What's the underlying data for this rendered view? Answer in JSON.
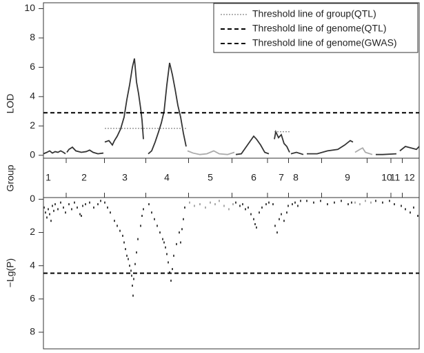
{
  "chart_data": [
    {
      "type": "line",
      "y_label": "LOD",
      "xlim": [
        63,
        608
      ],
      "ylim": [
        -0.2,
        10.4
      ],
      "yticks": [
        0,
        2,
        4,
        6,
        8,
        10
      ],
      "series": [
        {
          "color": "#333333",
          "x": [
            63,
            68,
            72,
            76,
            80,
            84,
            88,
            92,
            95
          ],
          "values": [
            0.1,
            0.2,
            0.3,
            0.15,
            0.25,
            0.2,
            0.3,
            0.2,
            0.1
          ]
        },
        {
          "color": "#333333",
          "x": [
            97,
            100,
            105,
            110,
            118,
            125,
            130,
            135,
            142,
            150
          ],
          "values": [
            0.2,
            0.4,
            0.55,
            0.3,
            0.2,
            0.25,
            0.35,
            0.2,
            0.1,
            0.15
          ]
        },
        {
          "color": "#333333",
          "x": [
            152,
            158,
            163,
            166,
            170,
            175,
            180,
            184,
            188,
            192,
            195,
            198,
            201,
            204,
            206,
            208
          ],
          "values": [
            0.9,
            1.0,
            0.7,
            1.0,
            1.3,
            1.8,
            2.6,
            3.8,
            4.8,
            6.0,
            6.6,
            5.0,
            4.2,
            3.2,
            2.4,
            1.1
          ]
        },
        {
          "color": "#333333",
          "x": [
            215,
            220,
            225,
            230,
            234,
            238,
            242,
            246,
            250,
            254,
            258,
            262,
            266,
            270
          ],
          "values": [
            0.1,
            0.3,
            0.9,
            1.6,
            2.2,
            3.0,
            4.8,
            6.3,
            5.5,
            4.5,
            3.4,
            2.6,
            1.5,
            0.6
          ]
        },
        {
          "color": "#aaaaaa",
          "x": [
            272,
            280,
            290,
            300,
            310,
            318,
            330,
            340
          ],
          "values": [
            0.3,
            0.15,
            0.05,
            0.1,
            0.3,
            0.1,
            0.05,
            0.2
          ]
        },
        {
          "color": "#333333",
          "x": [
            342,
            350,
            356,
            362,
            368,
            372,
            378,
            384,
            390
          ],
          "values": [
            0.05,
            0.1,
            0.5,
            0.9,
            1.3,
            1.1,
            0.7,
            0.2,
            0.1
          ]
        },
        {
          "color": "#333333",
          "x": [
            398,
            400,
            404,
            408,
            412,
            416,
            420
          ],
          "values": [
            1.1,
            1.6,
            1.2,
            1.4,
            0.8,
            0.6,
            0.2
          ]
        },
        {
          "color": "#333333",
          "x": [
            422,
            430,
            440
          ],
          "values": [
            0.1,
            0.2,
            0.05
          ]
        },
        {
          "color": "#333333",
          "x": [
            445,
            460,
            475,
            490,
            500,
            508,
            512
          ],
          "values": [
            0.1,
            0.1,
            0.3,
            0.4,
            0.7,
            1.0,
            0.9
          ]
        },
        {
          "color": "#aaaaaa",
          "x": [
            515,
            522,
            526,
            530,
            540
          ],
          "values": [
            0.2,
            0.4,
            0.5,
            0.2,
            0.05
          ]
        },
        {
          "color": "#333333",
          "x": [
            545,
            555,
            575
          ],
          "values": [
            0.05,
            0.05,
            0.1
          ]
        },
        {
          "color": "#333333",
          "x": [
            580,
            588,
            596,
            604,
            608
          ],
          "values": [
            0.3,
            0.6,
            0.5,
            0.4,
            0.6
          ]
        }
      ],
      "thresholds": [
        {
          "name": "Threshold line of group(QTL)",
          "style": "dotted",
          "color": "#666666",
          "segments": [
            {
              "value": 1.83,
              "xrange": [
                152,
                270
              ]
            },
            {
              "value": 1.6,
              "xrange": [
                398,
                420
              ]
            }
          ]
        },
        {
          "name": "Threshold line of genome(QTL)",
          "style": "dashed",
          "color": "#000000",
          "value": 2.9
        }
      ]
    },
    {
      "type": "scatter",
      "y_label": "−Lg(P)",
      "xlim": [
        63,
        608
      ],
      "ylim": [
        -0.1,
        9.0
      ],
      "y_inverted": true,
      "yticks": [
        0,
        2,
        4,
        6,
        8
      ],
      "series": [
        {
          "color": "#444444",
          "x": [
            64,
            66,
            68,
            70,
            72,
            74,
            76,
            78,
            80,
            84,
            88,
            92,
            95
          ],
          "values": [
            0.5,
            0.8,
            1.1,
            0.6,
            0.9,
            1.3,
            0.4,
            0.7,
            0.3,
            0.6,
            0.2,
            0.5,
            0.8
          ]
        },
        {
          "color": "#444444",
          "x": [
            100,
            104,
            108,
            112,
            116,
            118,
            120,
            124,
            130,
            136,
            142,
            146
          ],
          "values": [
            0.3,
            0.6,
            0.2,
            0.5,
            0.9,
            1.0,
            0.4,
            0.3,
            0.2,
            0.5,
            0.3,
            0.1
          ]
        },
        {
          "color": "#444444",
          "x": [
            152,
            156,
            160,
            166,
            170,
            174,
            178,
            180,
            182,
            184,
            186,
            188,
            190,
            191,
            192,
            193,
            194,
            196,
            198,
            200,
            204,
            206,
            208
          ],
          "values": [
            0.2,
            0.5,
            0.8,
            1.3,
            1.6,
            1.9,
            2.2,
            2.6,
            3.0,
            3.4,
            3.6,
            4.0,
            4.3,
            4.6,
            5.2,
            5.8,
            4.8,
            3.9,
            3.2,
            2.4,
            1.6,
            1.0,
            0.6
          ]
        },
        {
          "color": "#444444",
          "x": [
            216,
            220,
            224,
            228,
            232,
            236,
            238,
            240,
            242,
            244,
            246,
            248,
            250,
            252,
            256,
            260,
            262,
            264,
            266,
            268
          ],
          "values": [
            0.3,
            0.8,
            1.2,
            1.6,
            2.0,
            2.4,
            2.6,
            2.9,
            3.3,
            3.8,
            4.4,
            4.9,
            4.2,
            3.4,
            2.7,
            2.0,
            2.6,
            1.8,
            1.2,
            0.5
          ]
        },
        {
          "color": "#aaaaaa",
          "x": [
            275,
            282,
            290,
            298,
            305,
            312,
            318,
            325,
            332,
            338
          ],
          "values": [
            0.2,
            0.4,
            0.3,
            0.5,
            0.2,
            0.3,
            0.1,
            0.4,
            0.6,
            0.3
          ]
        },
        {
          "color": "#444444",
          "x": [
            342,
            348,
            352,
            356,
            360,
            364,
            368,
            370,
            372,
            376,
            380,
            386,
            390
          ],
          "values": [
            0.2,
            0.4,
            0.3,
            0.6,
            0.5,
            0.9,
            1.2,
            1.5,
            1.7,
            0.8,
            0.5,
            0.3,
            0.2
          ]
        },
        {
          "color": "#444444",
          "x": [
            396,
            399,
            402,
            405,
            408,
            412,
            416,
            418
          ],
          "values": [
            0.3,
            1.6,
            2.0,
            1.2,
            0.9,
            1.3,
            0.8,
            0.4
          ]
        },
        {
          "color": "#444444",
          "x": [
            424,
            428,
            432,
            436
          ],
          "values": [
            0.3,
            0.2,
            0.4,
            0.1
          ]
        },
        {
          "color": "#444444",
          "x": [
            445,
            455,
            465,
            475,
            485,
            495,
            505,
            510
          ],
          "values": [
            0.1,
            0.2,
            0.1,
            0.3,
            0.2,
            0.1,
            0.3,
            0.2
          ]
        },
        {
          "color": "#aaaaaa",
          "x": [
            515,
            522,
            530,
            538
          ],
          "values": [
            0.2,
            0.3,
            0.1,
            0.2
          ]
        },
        {
          "color": "#444444",
          "x": [
            545,
            555,
            565,
            572
          ],
          "values": [
            0.1,
            0.2,
            0.1,
            0.3
          ]
        },
        {
          "color": "#444444",
          "x": [
            582,
            588,
            595,
            600,
            606
          ],
          "values": [
            0.4,
            0.6,
            0.8,
            0.5,
            1.0
          ]
        }
      ],
      "thresholds": [
        {
          "name": "Threshold line of genome(GWAS)",
          "style": "dashed",
          "color": "#000000",
          "value": 4.45
        }
      ]
    }
  ],
  "groups": {
    "title": "Group",
    "labels": [
      "1",
      "2",
      "3",
      "4",
      "5",
      "6",
      "7",
      "8",
      "9",
      "10",
      "11",
      "12"
    ],
    "x": [
      70,
      122,
      181,
      242,
      305,
      368,
      408,
      429,
      504,
      561,
      573,
      594
    ],
    "colors": [
      "#333333",
      "#333333",
      "#333333",
      "#333333",
      "#999999",
      "#333333",
      "#333333",
      "#333333",
      "#333333",
      "#999999",
      "#333333",
      "#333333"
    ]
  }
}
